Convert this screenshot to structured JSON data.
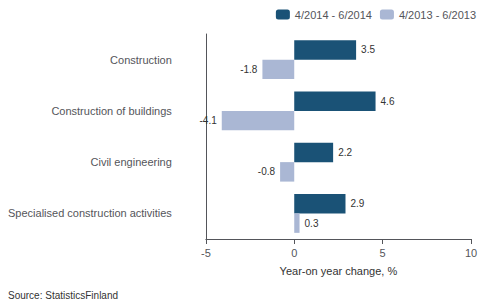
{
  "chart_data": {
    "type": "bar",
    "orientation": "horizontal",
    "categories": [
      "Specialised construction activities",
      "Civil engineering",
      "Construction of buildings",
      "Construction"
    ],
    "series": [
      {
        "name": "4/2014 - 6/2014",
        "color": "#1a5276",
        "values": [
          2.9,
          2.2,
          4.6,
          3.5
        ]
      },
      {
        "name": "4/2013 - 6/2013",
        "color": "#aab7d4",
        "values": [
          0.3,
          -0.8,
          -4.1,
          -1.8
        ]
      }
    ],
    "xlabel": "Year-on year change, %",
    "xlim": [
      -5,
      10
    ],
    "xticks": [
      -5,
      0,
      5,
      10
    ],
    "data_labels": true,
    "grid": false,
    "legend": "upper right",
    "annotations": [
      "Source: StatisticsFinland"
    ]
  }
}
